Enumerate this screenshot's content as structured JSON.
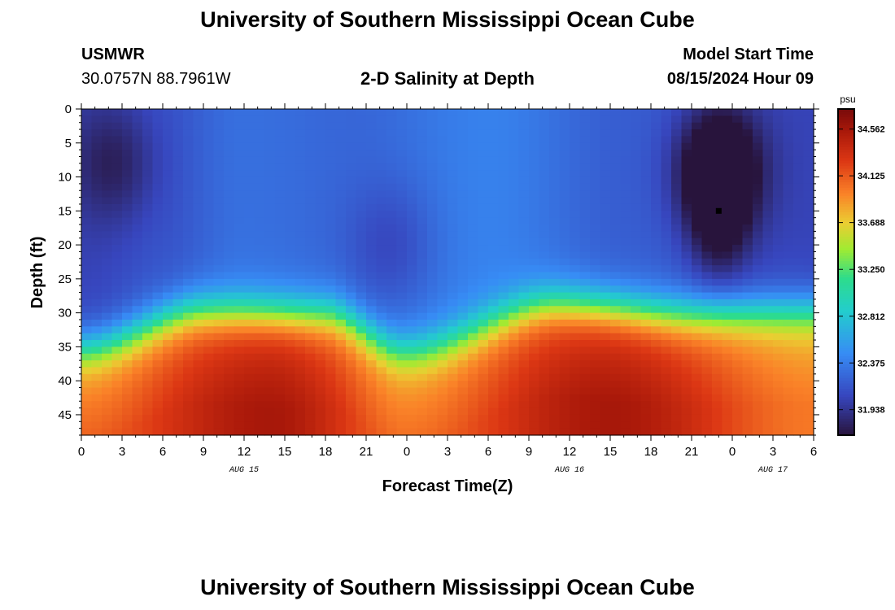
{
  "header": {
    "title": "University of Southern Mississippi Ocean Cube",
    "station": "USMWR",
    "coords": "30.0757N  88.7961W",
    "subtitle": "2-D Salinity at Depth",
    "model_label": "Model Start Time",
    "model_time": "08/15/2024 Hour 09"
  },
  "footer": {
    "title": "University of Southern Mississippi Ocean Cube"
  },
  "chart_data": {
    "type": "heatmap",
    "title": "2-D Salinity at Depth",
    "xlabel": "Forecast Time(Z)",
    "ylabel": "Depth (ft)",
    "x_ticks": [
      "0",
      "3",
      "6",
      "9",
      "12",
      "15",
      "18",
      "21",
      "0",
      "3",
      "6",
      "9",
      "12",
      "15",
      "18",
      "21",
      "0",
      "3",
      "6"
    ],
    "x_range_hours": [
      0,
      54
    ],
    "date_labels": [
      {
        "label": "AUG 15",
        "hour": 12
      },
      {
        "label": "AUG 16",
        "hour": 36
      },
      {
        "label": "AUG 17",
        "hour": 51
      }
    ],
    "y_ticks": [
      0,
      5,
      10,
      15,
      20,
      25,
      30,
      35,
      40,
      45
    ],
    "y_range_ft": [
      0,
      48
    ],
    "colorbar": {
      "unit": "psu",
      "ticks": [
        "34.562",
        "34.125",
        "33.688",
        "33.250",
        "32.812",
        "32.375",
        "31.938"
      ],
      "range": [
        31.7,
        34.75
      ]
    },
    "marker": {
      "hour": 47,
      "depth_ft": 15
    },
    "thermocline": [
      {
        "hour": 0,
        "depth_ft": 35
      },
      {
        "hour": 9,
        "depth_ft": 29.5
      },
      {
        "hour": 18,
        "depth_ft": 30
      },
      {
        "hour": 24,
        "depth_ft": 35.5
      },
      {
        "hour": 35,
        "depth_ft": 28.5
      },
      {
        "hour": 45,
        "depth_ft": 30
      },
      {
        "hour": 54,
        "depth_ft": 29.5
      }
    ],
    "surface_salinity": [
      {
        "hour": 0,
        "psu": 32.05
      },
      {
        "hour": 6,
        "psu": 32.15
      },
      {
        "hour": 12,
        "psu": 32.3
      },
      {
        "hour": 20,
        "psu": 32.25
      },
      {
        "hour": 30,
        "psu": 32.4
      },
      {
        "hour": 40,
        "psu": 32.2
      },
      {
        "hour": 54,
        "psu": 32.05
      }
    ],
    "deep_salinity": [
      {
        "hour": 0,
        "psu": 34.1
      },
      {
        "hour": 14,
        "psu": 34.55
      },
      {
        "hour": 24,
        "psu": 34.05
      },
      {
        "hour": 39,
        "psu": 34.55
      },
      {
        "hour": 54,
        "psu": 34.0
      }
    ],
    "low_salinity_patches": [
      {
        "hour": 2.5,
        "depth_ft": 8,
        "psu_delta": -0.3
      },
      {
        "hour": 23,
        "depth_ft": 20,
        "psu_delta": -0.2
      },
      {
        "hour": 47,
        "depth_ft": 9,
        "psu_delta": -0.7
      }
    ]
  }
}
